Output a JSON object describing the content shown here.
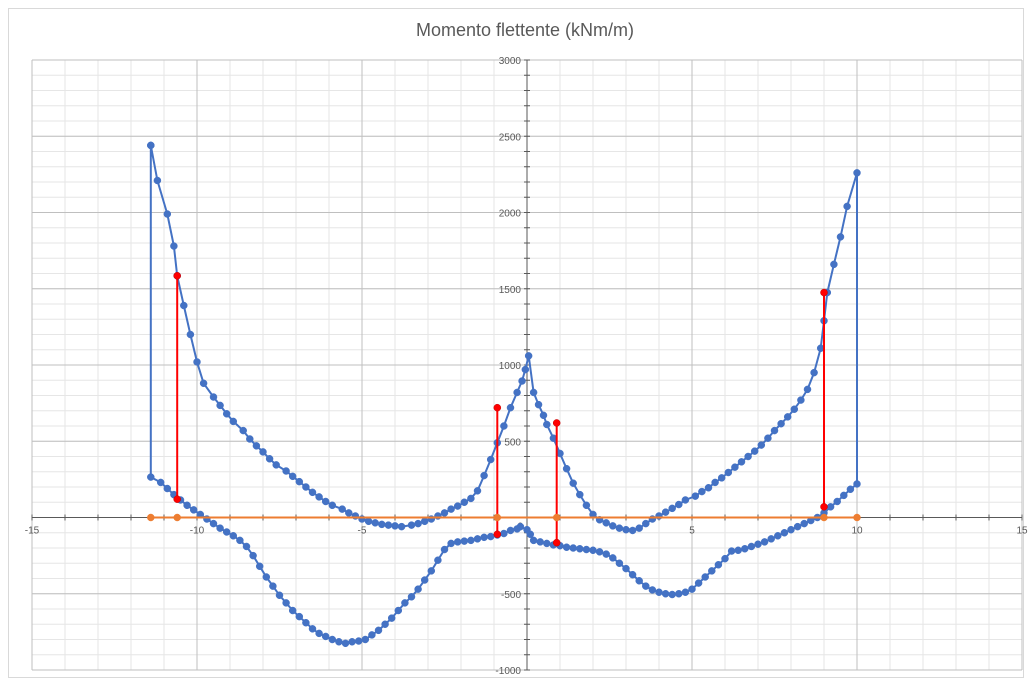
{
  "chart_data": {
    "type": "scatter",
    "title": "Momento flettente (kNm/m)",
    "xlabel": "",
    "ylabel": "",
    "xlim": [
      -15,
      15
    ],
    "ylim": [
      -1000,
      3000
    ],
    "x_major_step": 5,
    "x_minor_step": 1,
    "y_major_step": 500,
    "y_minor_step": 100,
    "grid": true,
    "legend": "none",
    "series": [
      {
        "color": "#4472c4",
        "line": true,
        "markers": true,
        "points": [
          [
            -11.4,
            2440
          ],
          [
            -11.2,
            2210
          ],
          [
            -10.9,
            1990
          ],
          [
            -10.7,
            1780
          ],
          [
            -10.6,
            1585
          ],
          [
            -10.4,
            1390
          ],
          [
            -10.2,
            1200
          ],
          [
            -10.0,
            1020
          ],
          [
            -9.8,
            880
          ],
          [
            -9.5,
            790
          ],
          [
            -9.3,
            735
          ],
          [
            -9.1,
            680
          ],
          [
            -8.9,
            630
          ],
          [
            -8.6,
            570
          ],
          [
            -8.4,
            515
          ],
          [
            -8.2,
            470
          ],
          [
            -8.0,
            430
          ],
          [
            -7.8,
            385
          ],
          [
            -7.6,
            345
          ],
          [
            -7.3,
            305
          ],
          [
            -7.1,
            270
          ],
          [
            -6.9,
            235
          ],
          [
            -6.7,
            200
          ],
          [
            -6.5,
            165
          ],
          [
            -6.3,
            135
          ],
          [
            -6.1,
            105
          ],
          [
            -5.9,
            80
          ],
          [
            -5.6,
            55
          ],
          [
            -5.4,
            30
          ],
          [
            -5.2,
            10
          ],
          [
            -5.0,
            -10
          ],
          [
            -4.8,
            -25
          ],
          [
            -4.6,
            -35
          ],
          [
            -4.4,
            -45
          ],
          [
            -4.2,
            -50
          ],
          [
            -4.0,
            -55
          ],
          [
            -3.8,
            -60
          ],
          [
            -3.5,
            -50
          ],
          [
            -3.3,
            -40
          ],
          [
            -3.1,
            -25
          ],
          [
            -2.9,
            -10
          ],
          [
            -2.7,
            10
          ],
          [
            -2.5,
            30
          ],
          [
            -2.3,
            55
          ],
          [
            -2.1,
            75
          ],
          [
            -1.9,
            100
          ],
          [
            -1.7,
            125
          ],
          [
            -1.5,
            175
          ],
          [
            -1.3,
            275
          ],
          [
            -1.1,
            380
          ],
          [
            -0.9,
            490
          ],
          [
            -0.7,
            600
          ],
          [
            -0.5,
            720
          ],
          [
            -0.3,
            820
          ],
          [
            -0.15,
            895
          ],
          [
            -0.05,
            970
          ],
          [
            0.05,
            1060
          ],
          [
            0.2,
            820
          ],
          [
            0.35,
            740
          ],
          [
            0.5,
            670
          ],
          [
            0.6,
            610
          ],
          [
            0.8,
            520
          ],
          [
            1.0,
            420
          ],
          [
            1.2,
            320
          ],
          [
            1.4,
            225
          ],
          [
            1.6,
            150
          ],
          [
            1.8,
            80
          ],
          [
            2.0,
            20
          ],
          [
            2.2,
            -15
          ],
          [
            2.4,
            -35
          ],
          [
            2.6,
            -55
          ],
          [
            2.8,
            -70
          ],
          [
            3.0,
            -80
          ],
          [
            3.2,
            -85
          ],
          [
            3.4,
            -70
          ],
          [
            3.6,
            -40
          ],
          [
            3.8,
            -10
          ],
          [
            4.0,
            10
          ],
          [
            4.2,
            35
          ],
          [
            4.4,
            60
          ],
          [
            4.6,
            85
          ],
          [
            4.8,
            115
          ],
          [
            5.1,
            140
          ],
          [
            5.3,
            170
          ],
          [
            5.5,
            195
          ],
          [
            5.7,
            230
          ],
          [
            5.9,
            260
          ],
          [
            6.1,
            295
          ],
          [
            6.3,
            330
          ],
          [
            6.5,
            365
          ],
          [
            6.7,
            400
          ],
          [
            6.9,
            435
          ],
          [
            7.1,
            475
          ],
          [
            7.3,
            520
          ],
          [
            7.5,
            570
          ],
          [
            7.7,
            615
          ],
          [
            7.9,
            660
          ],
          [
            8.1,
            710
          ],
          [
            8.3,
            770
          ],
          [
            8.5,
            840
          ],
          [
            8.7,
            950
          ],
          [
            8.9,
            1110
          ],
          [
            9.0,
            1290
          ],
          [
            9.1,
            1475
          ],
          [
            9.3,
            1660
          ],
          [
            9.5,
            1840
          ],
          [
            9.7,
            2040
          ],
          [
            10.0,
            2260
          ],
          [
            10.0,
            220
          ],
          [
            9.8,
            185
          ],
          [
            9.6,
            145
          ],
          [
            9.4,
            105
          ],
          [
            9.2,
            70
          ],
          [
            9.0,
            30
          ],
          [
            8.8,
            0
          ],
          [
            8.6,
            -20
          ],
          [
            8.4,
            -40
          ],
          [
            8.2,
            -60
          ],
          [
            8.0,
            -80
          ],
          [
            7.8,
            -100
          ],
          [
            7.6,
            -120
          ],
          [
            7.4,
            -140
          ],
          [
            7.2,
            -160
          ],
          [
            7.0,
            -175
          ],
          [
            6.8,
            -190
          ],
          [
            6.6,
            -205
          ],
          [
            6.4,
            -215
          ],
          [
            6.2,
            -220
          ],
          [
            6.0,
            -270
          ],
          [
            5.8,
            -310
          ],
          [
            5.6,
            -350
          ],
          [
            5.4,
            -390
          ],
          [
            5.2,
            -430
          ],
          [
            5.0,
            -470
          ],
          [
            4.8,
            -490
          ],
          [
            4.6,
            -500
          ],
          [
            4.4,
            -505
          ],
          [
            4.2,
            -500
          ],
          [
            4.0,
            -490
          ],
          [
            3.8,
            -475
          ],
          [
            3.6,
            -450
          ],
          [
            3.4,
            -415
          ],
          [
            3.2,
            -375
          ],
          [
            3.0,
            -335
          ],
          [
            2.8,
            -300
          ],
          [
            2.6,
            -265
          ],
          [
            2.4,
            -240
          ],
          [
            2.2,
            -225
          ],
          [
            2.0,
            -215
          ],
          [
            1.8,
            -210
          ],
          [
            1.6,
            -205
          ],
          [
            1.4,
            -200
          ],
          [
            1.2,
            -195
          ],
          [
            1.0,
            -185
          ],
          [
            0.8,
            -180
          ],
          [
            0.6,
            -170
          ],
          [
            0.4,
            -160
          ],
          [
            0.2,
            -150
          ],
          [
            0.1,
            -110
          ],
          [
            0.0,
            -80
          ],
          [
            -0.2,
            -60
          ],
          [
            -0.3,
            -75
          ],
          [
            -0.5,
            -85
          ],
          [
            -0.7,
            -105
          ],
          [
            -0.9,
            -115
          ],
          [
            -1.1,
            -125
          ],
          [
            -1.3,
            -130
          ],
          [
            -1.5,
            -140
          ],
          [
            -1.7,
            -150
          ],
          [
            -1.9,
            -155
          ],
          [
            -2.1,
            -160
          ],
          [
            -2.3,
            -170
          ],
          [
            -2.5,
            -210
          ],
          [
            -2.7,
            -280
          ],
          [
            -2.9,
            -350
          ],
          [
            -3.1,
            -410
          ],
          [
            -3.3,
            -470
          ],
          [
            -3.5,
            -520
          ],
          [
            -3.7,
            -560
          ],
          [
            -3.9,
            -610
          ],
          [
            -4.1,
            -660
          ],
          [
            -4.3,
            -700
          ],
          [
            -4.5,
            -740
          ],
          [
            -4.7,
            -770
          ],
          [
            -4.9,
            -800
          ],
          [
            -5.1,
            -810
          ],
          [
            -5.3,
            -815
          ],
          [
            -5.5,
            -825
          ],
          [
            -5.7,
            -815
          ],
          [
            -5.9,
            -800
          ],
          [
            -6.1,
            -780
          ],
          [
            -6.3,
            -760
          ],
          [
            -6.5,
            -730
          ],
          [
            -6.7,
            -690
          ],
          [
            -6.9,
            -650
          ],
          [
            -7.1,
            -610
          ],
          [
            -7.3,
            -560
          ],
          [
            -7.5,
            -510
          ],
          [
            -7.7,
            -450
          ],
          [
            -7.9,
            -390
          ],
          [
            -8.1,
            -320
          ],
          [
            -8.3,
            -250
          ],
          [
            -8.5,
            -190
          ],
          [
            -8.7,
            -150
          ],
          [
            -8.9,
            -120
          ],
          [
            -9.1,
            -95
          ],
          [
            -9.3,
            -70
          ],
          [
            -9.5,
            -40
          ],
          [
            -9.7,
            -10
          ],
          [
            -9.9,
            20
          ],
          [
            -10.1,
            50
          ],
          [
            -10.3,
            80
          ],
          [
            -10.5,
            115
          ],
          [
            -10.7,
            150
          ],
          [
            -10.9,
            190
          ],
          [
            -11.1,
            230
          ],
          [
            -11.4,
            265
          ],
          [
            -11.4,
            2440
          ]
        ]
      },
      {
        "color": "#ff0000",
        "line": true,
        "markers": true,
        "segments": [
          [
            [
              -10.6,
              1585
            ],
            [
              -10.6,
              120
            ]
          ],
          [
            [
              -0.9,
              720
            ],
            [
              -0.9,
              -110
            ]
          ],
          [
            [
              0.9,
              620
            ],
            [
              0.9,
              -165
            ]
          ],
          [
            [
              9.0,
              1475
            ],
            [
              9.0,
              70
            ]
          ]
        ]
      },
      {
        "color": "#ed7d31",
        "line": true,
        "markers": true,
        "points": [
          [
            -11.4,
            0
          ],
          [
            -10.6,
            0
          ],
          [
            -0.9,
            0
          ],
          [
            0.9,
            0
          ],
          [
            9.0,
            0
          ],
          [
            10.0,
            0
          ]
        ]
      }
    ],
    "x_tick_labels": [
      "-15",
      "-10",
      "-5",
      "0",
      "5",
      "10",
      "15"
    ],
    "y_tick_labels": [
      "-1000",
      "-500",
      "0",
      "500",
      "1000",
      "1500",
      "2000",
      "2500",
      "3000"
    ]
  }
}
